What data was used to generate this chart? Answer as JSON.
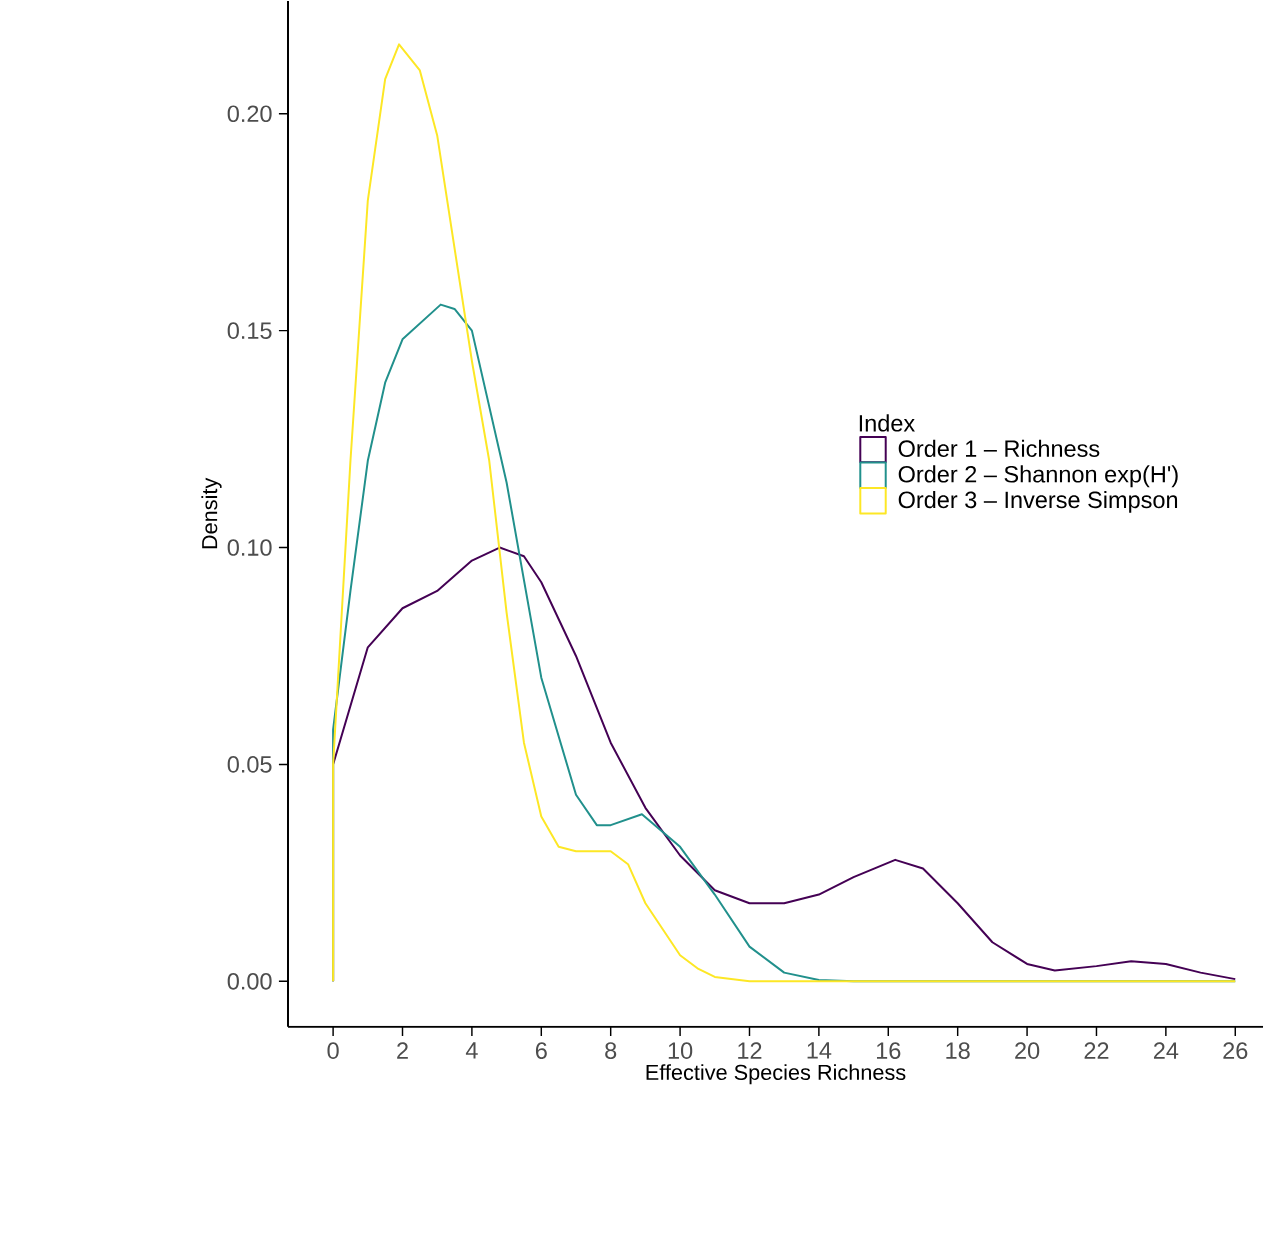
{
  "chart_data": {
    "type": "line",
    "xlabel": "Effective Species Richness",
    "ylabel": "Density",
    "legend_title": "Index",
    "legend": "center",
    "grid": false,
    "marker": "none",
    "line_style": "solid",
    "xlim": [
      -1.3,
      26.8
    ],
    "ylim": [
      -0.0105,
      0.226
    ],
    "xticks": [
      0,
      2,
      4,
      6,
      8,
      10,
      12,
      14,
      16,
      18,
      20,
      22,
      24,
      26
    ],
    "yticks": [
      {
        "value": 0,
        "label": "0.00"
      },
      {
        "value": 0.05,
        "label": "0.05"
      },
      {
        "value": 0.1,
        "label": "0.10"
      },
      {
        "value": 0.15,
        "label": "0.15"
      },
      {
        "value": 0.2,
        "label": "0.20"
      }
    ],
    "series": [
      {
        "name": "Order 1 – Richness",
        "color": "#440154",
        "x": [
          0,
          0,
          1,
          2,
          3,
          4,
          4.8,
          5.5,
          6,
          7,
          8,
          9,
          10,
          11,
          12,
          13,
          14,
          15,
          16.2,
          17,
          18,
          19,
          20,
          20.8,
          22,
          23,
          24,
          25,
          26
        ],
        "values": [
          0,
          0.05,
          0.077,
          0.086,
          0.09,
          0.097,
          0.1,
          0.098,
          0.092,
          0.075,
          0.055,
          0.04,
          0.029,
          0.021,
          0.018,
          0.018,
          0.02,
          0.024,
          0.028,
          0.026,
          0.018,
          0.009,
          0.004,
          0.0025,
          0.0035,
          0.0046,
          0.004,
          0.002,
          0.0005
        ]
      },
      {
        "name": "Order 2 – Shannon exp(H')",
        "color": "#21908c",
        "x": [
          0,
          0,
          0.5,
          1,
          1.5,
          2,
          3.1,
          3.5,
          4,
          5,
          6,
          7,
          7.6,
          8,
          8.9,
          10,
          11,
          12,
          13,
          14,
          15,
          26
        ],
        "values": [
          0,
          0.058,
          0.09,
          0.12,
          0.138,
          0.148,
          0.156,
          0.155,
          0.15,
          0.115,
          0.07,
          0.043,
          0.036,
          0.036,
          0.0385,
          0.031,
          0.02,
          0.008,
          0.002,
          0.0003,
          0,
          0
        ]
      },
      {
        "name": "Order 3 – Inverse Simpson",
        "color": "#fde725",
        "x": [
          0,
          0,
          0.5,
          1,
          1.5,
          1.9,
          2.5,
          3,
          4,
          4.5,
          5,
          5.5,
          6,
          6.5,
          7,
          8,
          8.5,
          9,
          10,
          10.5,
          11,
          12,
          26
        ],
        "values": [
          0,
          0.05,
          0.12,
          0.18,
          0.208,
          0.216,
          0.21,
          0.195,
          0.143,
          0.12,
          0.085,
          0.055,
          0.038,
          0.031,
          0.03,
          0.03,
          0.027,
          0.018,
          0.006,
          0.003,
          0.001,
          0,
          0
        ]
      }
    ]
  }
}
